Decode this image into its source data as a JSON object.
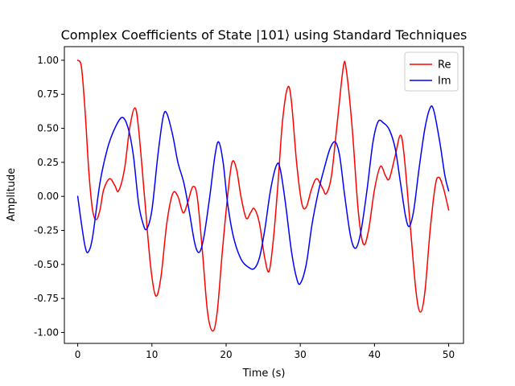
{
  "chart_data": {
    "type": "line",
    "title": "Complex Coefficients of State |101⟩ using Standard Techniques",
    "xlabel": "Time (s)",
    "ylabel": "Amplitude",
    "xlim": [
      -1.8,
      52
    ],
    "ylim": [
      -1.08,
      1.1
    ],
    "xticks": [
      0,
      10,
      20,
      30,
      40,
      50
    ],
    "yticks": [
      -1.0,
      -0.75,
      -0.5,
      -0.25,
      0.0,
      0.25,
      0.5,
      0.75,
      1.0
    ],
    "grid": false,
    "legend": {
      "placement": "top-right",
      "entries": [
        "Re",
        "Im"
      ]
    },
    "series": [
      {
        "name": "Re",
        "color": "#ff0000",
        "points": [
          [
            0,
            1.0
          ],
          [
            0.5,
            0.95
          ],
          [
            1.0,
            0.62
          ],
          [
            1.5,
            0.18
          ],
          [
            2.0,
            -0.1
          ],
          [
            2.5,
            -0.17
          ],
          [
            3.0,
            -0.1
          ],
          [
            3.5,
            0.05
          ],
          [
            4.3,
            0.13
          ],
          [
            5.0,
            0.08
          ],
          [
            5.5,
            0.04
          ],
          [
            6.3,
            0.2
          ],
          [
            7.0,
            0.5
          ],
          [
            7.7,
            0.65
          ],
          [
            8.2,
            0.5
          ],
          [
            9.0,
            0.0
          ],
          [
            9.8,
            -0.5
          ],
          [
            10.5,
            -0.73
          ],
          [
            11.2,
            -0.6
          ],
          [
            12.0,
            -0.2
          ],
          [
            12.8,
            0.02
          ],
          [
            13.5,
            0.0
          ],
          [
            14.2,
            -0.12
          ],
          [
            14.8,
            -0.05
          ],
          [
            15.5,
            0.07
          ],
          [
            16.1,
            0.0
          ],
          [
            16.8,
            -0.4
          ],
          [
            17.5,
            -0.85
          ],
          [
            18.2,
            -0.99
          ],
          [
            18.8,
            -0.85
          ],
          [
            19.5,
            -0.4
          ],
          [
            20.2,
            0.0
          ],
          [
            20.8,
            0.25
          ],
          [
            21.4,
            0.2
          ],
          [
            22.0,
            0.0
          ],
          [
            22.7,
            -0.16
          ],
          [
            23.3,
            -0.12
          ],
          [
            23.8,
            -0.09
          ],
          [
            24.5,
            -0.2
          ],
          [
            25.2,
            -0.45
          ],
          [
            25.8,
            -0.55
          ],
          [
            26.4,
            -0.3
          ],
          [
            27.0,
            0.1
          ],
          [
            27.6,
            0.55
          ],
          [
            28.3,
            0.8
          ],
          [
            28.8,
            0.7
          ],
          [
            29.5,
            0.25
          ],
          [
            30.2,
            -0.05
          ],
          [
            30.8,
            -0.08
          ],
          [
            31.5,
            0.05
          ],
          [
            32.2,
            0.13
          ],
          [
            33.0,
            0.06
          ],
          [
            33.5,
            0.02
          ],
          [
            34.2,
            0.15
          ],
          [
            35.0,
            0.55
          ],
          [
            35.8,
            0.95
          ],
          [
            36.2,
            0.93
          ],
          [
            37.0,
            0.5
          ],
          [
            37.8,
            -0.1
          ],
          [
            38.5,
            -0.35
          ],
          [
            39.2,
            -0.25
          ],
          [
            40.0,
            0.05
          ],
          [
            40.8,
            0.22
          ],
          [
            41.5,
            0.15
          ],
          [
            42.0,
            0.13
          ],
          [
            42.8,
            0.3
          ],
          [
            43.5,
            0.45
          ],
          [
            44.0,
            0.3
          ],
          [
            44.8,
            -0.2
          ],
          [
            45.6,
            -0.7
          ],
          [
            46.2,
            -0.85
          ],
          [
            46.8,
            -0.7
          ],
          [
            47.5,
            -0.25
          ],
          [
            48.2,
            0.08
          ],
          [
            48.7,
            0.14
          ],
          [
            49.3,
            0.06
          ],
          [
            50.0,
            -0.1
          ]
        ]
      },
      {
        "name": "Im",
        "color": "#0000ff",
        "points": [
          [
            0,
            0.0
          ],
          [
            0.5,
            -0.2
          ],
          [
            1.0,
            -0.37
          ],
          [
            1.4,
            -0.41
          ],
          [
            2.0,
            -0.3
          ],
          [
            3.0,
            0.1
          ],
          [
            4.0,
            0.35
          ],
          [
            5.0,
            0.5
          ],
          [
            6.0,
            0.58
          ],
          [
            6.8,
            0.5
          ],
          [
            7.5,
            0.3
          ],
          [
            8.2,
            -0.05
          ],
          [
            8.8,
            -0.2
          ],
          [
            9.3,
            -0.24
          ],
          [
            10.0,
            -0.1
          ],
          [
            10.8,
            0.3
          ],
          [
            11.5,
            0.58
          ],
          [
            12.0,
            0.61
          ],
          [
            12.8,
            0.45
          ],
          [
            13.5,
            0.25
          ],
          [
            14.3,
            0.1
          ],
          [
            15.0,
            -0.1
          ],
          [
            15.8,
            -0.35
          ],
          [
            16.4,
            -0.41
          ],
          [
            17.0,
            -0.3
          ],
          [
            17.8,
            0.0
          ],
          [
            18.5,
            0.3
          ],
          [
            19.0,
            0.4
          ],
          [
            19.6,
            0.25
          ],
          [
            20.2,
            -0.05
          ],
          [
            21.0,
            -0.3
          ],
          [
            22.0,
            -0.46
          ],
          [
            23.0,
            -0.52
          ],
          [
            23.8,
            -0.53
          ],
          [
            24.5,
            -0.45
          ],
          [
            25.2,
            -0.25
          ],
          [
            26.0,
            0.05
          ],
          [
            26.8,
            0.23
          ],
          [
            27.3,
            0.2
          ],
          [
            28.0,
            -0.05
          ],
          [
            28.8,
            -0.4
          ],
          [
            29.5,
            -0.6
          ],
          [
            30.0,
            -0.64
          ],
          [
            30.8,
            -0.5
          ],
          [
            31.6,
            -0.2
          ],
          [
            32.5,
            0.05
          ],
          [
            33.2,
            0.2
          ],
          [
            34.0,
            0.35
          ],
          [
            34.7,
            0.4
          ],
          [
            35.3,
            0.3
          ],
          [
            36.0,
            0.0
          ],
          [
            36.8,
            -0.3
          ],
          [
            37.5,
            -0.38
          ],
          [
            38.2,
            -0.25
          ],
          [
            39.0,
            0.05
          ],
          [
            39.8,
            0.4
          ],
          [
            40.5,
            0.55
          ],
          [
            41.2,
            0.54
          ],
          [
            42.0,
            0.49
          ],
          [
            42.8,
            0.35
          ],
          [
            43.5,
            0.1
          ],
          [
            44.2,
            -0.15
          ],
          [
            44.7,
            -0.22
          ],
          [
            45.3,
            -0.1
          ],
          [
            46.0,
            0.2
          ],
          [
            46.8,
            0.5
          ],
          [
            47.5,
            0.65
          ],
          [
            48.0,
            0.63
          ],
          [
            48.8,
            0.4
          ],
          [
            49.5,
            0.15
          ],
          [
            50.0,
            0.04
          ]
        ]
      }
    ]
  }
}
